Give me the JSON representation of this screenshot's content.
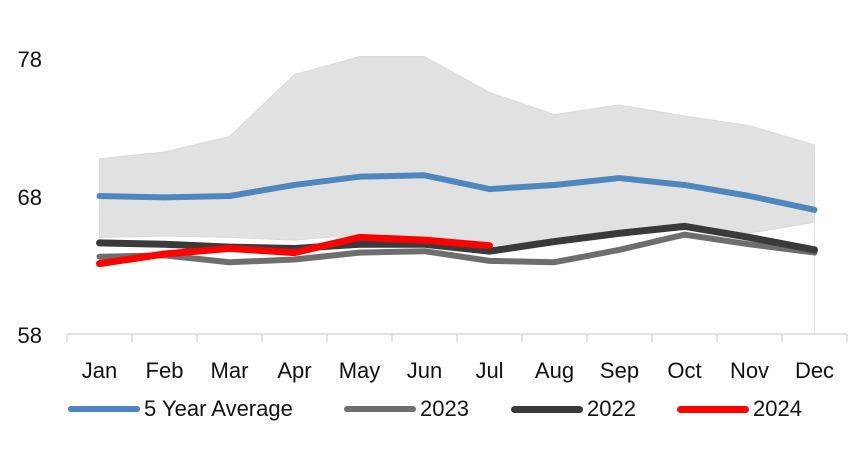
{
  "chart_data": {
    "type": "line",
    "categories": [
      "Jan",
      "Feb",
      "Mar",
      "Apr",
      "May",
      "Jun",
      "Jul",
      "Aug",
      "Sep",
      "Oct",
      "Nov",
      "Dec"
    ],
    "yticks": [
      78,
      68,
      58
    ],
    "ylim": [
      58,
      78.5
    ],
    "grid": "off",
    "legend_position": "bottom",
    "axis_color": "#D9D9D9",
    "band_color": "#E1E1E1",
    "text_color": "#111111",
    "band": {
      "high": [
        70.7,
        71.2,
        72.3,
        76.8,
        78.1,
        78.1,
        75.5,
        73.9,
        74.6,
        73.8,
        73.1,
        71.7
      ],
      "low": [
        65.0,
        65.1,
        65.0,
        64.8,
        65.2,
        65.1,
        64.4,
        64.9,
        65.5,
        65.9,
        65.3,
        66.1
      ]
    },
    "series": [
      {
        "name": "5 Year Average",
        "color": "#4E86BD",
        "stroke_width": 6,
        "values": [
          68.0,
          67.9,
          68.0,
          68.8,
          69.4,
          69.5,
          68.5,
          68.8,
          69.3,
          68.8,
          68.0,
          67.0
        ]
      },
      {
        "name": "2023",
        "color": "#6E6E6E",
        "stroke_width": 6,
        "values": [
          63.6,
          63.7,
          63.2,
          63.4,
          63.9,
          64.0,
          63.3,
          63.2,
          64.1,
          65.2,
          64.5,
          63.9
        ]
      },
      {
        "name": "2022",
        "color": "#3A3A3A",
        "stroke_width": 7,
        "values": [
          64.6,
          64.5,
          64.3,
          64.2,
          64.5,
          64.5,
          64.0,
          64.7,
          65.3,
          65.8,
          65.0,
          64.1
        ]
      },
      {
        "name": "2024",
        "color": "#FE0000",
        "stroke_width": 7,
        "values": [
          63.1,
          63.8,
          64.2,
          63.9,
          65.0,
          64.8,
          64.4,
          null,
          null,
          null,
          null,
          null
        ]
      }
    ]
  }
}
